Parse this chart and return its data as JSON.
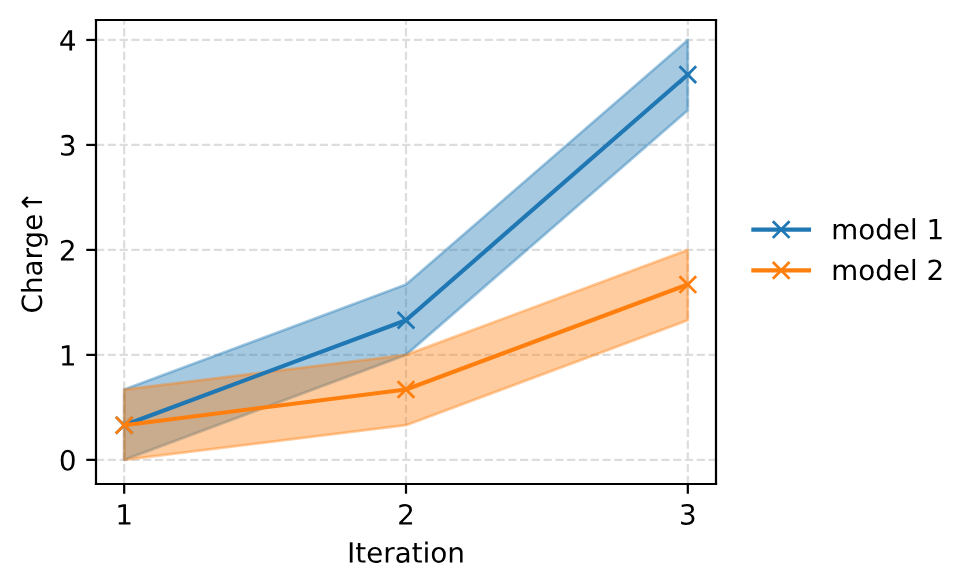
{
  "chart_data": {
    "type": "line",
    "xlabel": "Iteration",
    "ylabel": "Charge↑",
    "x": [
      1,
      2,
      3
    ],
    "series": [
      {
        "name": "model 1",
        "color": "#1f77b4",
        "values": [
          0.33,
          1.33,
          3.67
        ],
        "lower": [
          0,
          1.0,
          3.33
        ],
        "upper": [
          0.67,
          1.67,
          4.0
        ]
      },
      {
        "name": "model 2",
        "color": "#ff7f0e",
        "values": [
          0.33,
          0.67,
          1.67
        ],
        "lower": [
          0,
          0.33,
          1.33
        ],
        "upper": [
          0.67,
          1.0,
          2.0
        ]
      }
    ],
    "xlim": [
      0.9,
      3.1
    ],
    "xticks": [
      1,
      2,
      3
    ],
    "ylim": [
      -0.23,
      4.19
    ],
    "yticks": [
      0,
      1,
      2,
      3,
      4
    ],
    "grid": true,
    "legend": "right",
    "marker": "cross",
    "line_style": "solid"
  }
}
